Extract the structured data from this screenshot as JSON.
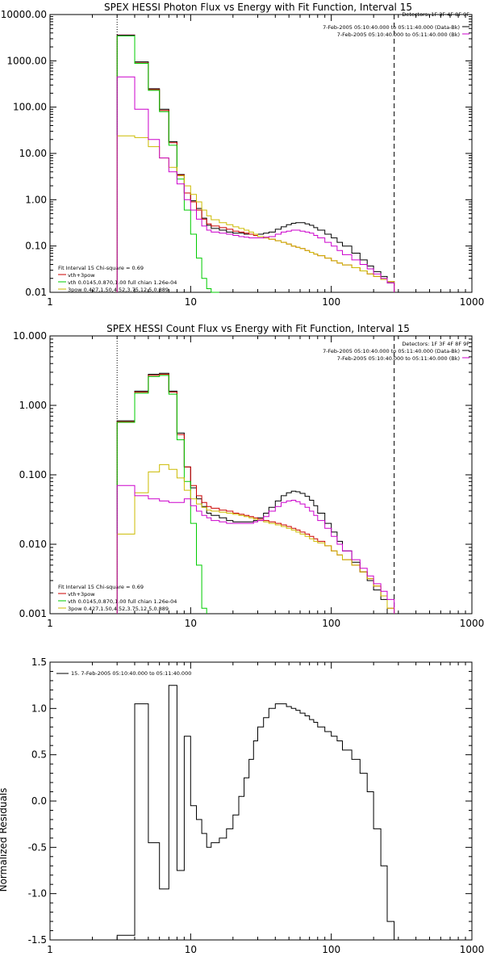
{
  "colors": {
    "data": "#000000",
    "vth_plus_3pow": "#cc0000",
    "vth": "#00cc00",
    "3pow": "#ccbb00",
    "bk": "#cc00cc",
    "dotted_line": "#000000"
  },
  "chart_data": [
    {
      "type": "line",
      "title": "SPEX HESSI Photon Flux vs Energy with Fit Function, Interval 15",
      "xlabel": "",
      "ylabel": "",
      "x_scale": "log",
      "y_scale": "log",
      "xlim": [
        1,
        1000
      ],
      "ylim": [
        0.01,
        10000
      ],
      "x_ticks": [
        1,
        10,
        100,
        1000
      ],
      "x_tick_labels": [
        "1",
        "10",
        "100",
        "1000"
      ],
      "y_ticks": [
        0.01,
        0.1,
        1,
        10,
        100,
        1000,
        10000
      ],
      "y_tick_labels": [
        "0.01",
        "0.10",
        "1.00",
        "10.00",
        "100.00",
        "1000.00",
        "10000.00"
      ],
      "detectors_label": "Detectors: 1F 3F 4F 8F 9F",
      "legend_top_right": [
        {
          "text": "7-Feb-2005 05:10:40.000 to 05:11:40.000 (Data-Bk)",
          "color": "#000000"
        },
        {
          "text": "7-Feb-2005 05:10:40.000 to 05:11:40.000 (Bk)",
          "color": "#cc00cc"
        }
      ],
      "legend_bottom_left": {
        "header": "Fit Interval 15    Chi-square = 0.69",
        "items": [
          {
            "text": "vth+3pow",
            "color": "#cc0000"
          },
          {
            "text": "vth 0.0145,0.870,1.00  full chian 1.26e-04",
            "color": "#00cc00"
          },
          {
            "text": "3pow 0.427,1.50,4.52,3.75,12.5,0.889",
            "color": "#ccbb00"
          }
        ]
      },
      "vlines": [
        {
          "x": 3,
          "style": "dotted"
        },
        {
          "x": 280,
          "style": "dashed"
        }
      ],
      "edges": [
        3,
        4,
        5,
        6,
        7,
        8,
        9,
        10,
        11,
        12,
        13,
        14,
        16,
        18,
        20,
        22,
        24,
        26,
        28,
        30,
        33,
        36,
        40,
        44,
        48,
        52,
        56,
        60,
        65,
        70,
        75,
        80,
        90,
        100,
        110,
        120,
        140,
        160,
        180,
        200,
        225,
        250,
        280
      ],
      "series": [
        {
          "name": "Data-Bk",
          "color": "#000000",
          "values": [
            3600,
            950,
            250,
            90,
            18,
            3.5,
            1.4,
            0.95,
            0.65,
            0.4,
            0.28,
            0.24,
            0.22,
            0.2,
            0.19,
            0.19,
            0.18,
            0.18,
            0.18,
            0.18,
            0.19,
            0.2,
            0.23,
            0.26,
            0.29,
            0.31,
            0.32,
            0.32,
            0.3,
            0.28,
            0.25,
            0.22,
            0.18,
            0.15,
            0.12,
            0.1,
            0.07,
            0.05,
            0.037,
            0.028,
            0.022,
            0.016
          ]
        },
        {
          "name": "vth+3pow",
          "color": "#cc0000",
          "values": [
            3500,
            900,
            240,
            85,
            17,
            3.4,
            1.4,
            0.9,
            0.6,
            0.38,
            0.3,
            0.27,
            0.25,
            0.23,
            0.21,
            0.2,
            0.19,
            0.18,
            0.17,
            0.16,
            0.15,
            0.14,
            0.13,
            0.12,
            0.11,
            0.1,
            0.094,
            0.088,
            0.08,
            0.073,
            0.067,
            0.062,
            0.055,
            0.048,
            0.043,
            0.039,
            0.034,
            0.029,
            0.025,
            0.022,
            0.019,
            0.017
          ]
        },
        {
          "name": "vth",
          "color": "#00cc00",
          "values": [
            3450,
            880,
            230,
            80,
            15,
            2.8,
            0.6,
            0.18,
            0.055,
            0.02,
            0.012,
            0.009
          ]
        },
        {
          "name": "3pow",
          "color": "#ccbb00",
          "values": [
            24,
            22,
            14,
            8,
            5,
            3.3,
            2.0,
            1.3,
            0.9,
            0.6,
            0.45,
            0.37,
            0.32,
            0.29,
            0.26,
            0.24,
            0.22,
            0.2,
            0.18,
            0.16,
            0.15,
            0.14,
            0.13,
            0.12,
            0.11,
            0.1,
            0.094,
            0.088,
            0.08,
            0.073,
            0.067,
            0.062,
            0.055,
            0.048,
            0.043,
            0.039,
            0.034,
            0.029,
            0.025,
            0.022,
            0.019,
            0.017
          ]
        },
        {
          "name": "Bk",
          "color": "#cc00cc",
          "values": [
            450,
            90,
            20,
            8,
            4,
            2.2,
            1.0,
            0.6,
            0.38,
            0.27,
            0.22,
            0.2,
            0.19,
            0.18,
            0.17,
            0.16,
            0.155,
            0.15,
            0.15,
            0.15,
            0.155,
            0.16,
            0.18,
            0.2,
            0.21,
            0.22,
            0.22,
            0.21,
            0.2,
            0.19,
            0.17,
            0.15,
            0.12,
            0.1,
            0.08,
            0.065,
            0.05,
            0.04,
            0.032,
            0.025,
            0.02,
            0.016
          ]
        }
      ]
    },
    {
      "type": "line",
      "title": "SPEX HESSI Count Flux vs Energy with Fit Function, Interval 15",
      "xlabel": "",
      "ylabel": "",
      "x_scale": "log",
      "y_scale": "log",
      "xlim": [
        1,
        1000
      ],
      "ylim": [
        0.001,
        10
      ],
      "x_ticks": [
        1,
        10,
        100,
        1000
      ],
      "x_tick_labels": [
        "1",
        "10",
        "100",
        "1000"
      ],
      "y_ticks": [
        0.001,
        0.01,
        0.1,
        1,
        10
      ],
      "y_tick_labels": [
        "0.001",
        "0.010",
        "0.100",
        "1.000",
        "10.000"
      ],
      "detectors_label": "Detectors: 1F 3F 4F 8F 9F",
      "legend_top_right": [
        {
          "text": "7-Feb-2005 05:10:40.000 to 05:11:40.000 (Data-Bk)",
          "color": "#000000"
        },
        {
          "text": "7-Feb-2005 05:10:40.000 to 05:11:40.000 (Bk)",
          "color": "#cc00cc"
        }
      ],
      "legend_bottom_left": {
        "header": "Fit Interval 15    Chi-square = 0.69",
        "items": [
          {
            "text": "vth+3pow",
            "color": "#cc0000"
          },
          {
            "text": "vth 0.0145,0.870,1.00  full chian 1.26e-04",
            "color": "#00cc00"
          },
          {
            "text": "3pow 0.427,1.50,4.52,3.75,12.5,0.889",
            "color": "#ccbb00"
          }
        ]
      },
      "vlines": [
        {
          "x": 3,
          "style": "dotted"
        },
        {
          "x": 280,
          "style": "dashed"
        }
      ],
      "edges": [
        3,
        4,
        5,
        6,
        7,
        8,
        9,
        10,
        11,
        12,
        13,
        14,
        16,
        18,
        20,
        22,
        24,
        26,
        28,
        30,
        33,
        36,
        40,
        44,
        48,
        52,
        56,
        60,
        65,
        70,
        75,
        80,
        90,
        100,
        110,
        120,
        140,
        160,
        180,
        200,
        225,
        250,
        280
      ],
      "series": [
        {
          "name": "Data-Bk",
          "color": "#000000",
          "values": [
            0.6,
            1.6,
            2.8,
            2.9,
            1.6,
            0.4,
            0.13,
            0.065,
            0.045,
            0.035,
            0.028,
            0.026,
            0.024,
            0.022,
            0.021,
            0.021,
            0.021,
            0.021,
            0.022,
            0.024,
            0.028,
            0.034,
            0.042,
            0.05,
            0.055,
            0.058,
            0.057,
            0.054,
            0.049,
            0.043,
            0.036,
            0.028,
            0.02,
            0.015,
            0.011,
            0.008,
            0.0055,
            0.004,
            0.003,
            0.0022,
            0.0016,
            0.001
          ]
        },
        {
          "name": "vth+3pow",
          "color": "#cc0000",
          "values": [
            0.58,
            1.55,
            2.7,
            2.8,
            1.55,
            0.38,
            0.13,
            0.07,
            0.05,
            0.04,
            0.035,
            0.033,
            0.031,
            0.03,
            0.028,
            0.027,
            0.026,
            0.025,
            0.024,
            0.023,
            0.022,
            0.021,
            0.02,
            0.019,
            0.018,
            0.017,
            0.016,
            0.015,
            0.014,
            0.013,
            0.012,
            0.011,
            0.0095,
            0.008,
            0.007,
            0.006,
            0.005,
            0.004,
            0.0032,
            0.0025,
            0.0018,
            0.0012
          ]
        },
        {
          "name": "vth",
          "color": "#00cc00",
          "values": [
            0.57,
            1.5,
            2.6,
            2.7,
            1.45,
            0.32,
            0.08,
            0.02,
            0.005,
            0.0012
          ]
        },
        {
          "name": "3pow",
          "color": "#ccbb00",
          "values": [
            0.014,
            0.055,
            0.11,
            0.14,
            0.12,
            0.09,
            0.06,
            0.045,
            0.038,
            0.034,
            0.031,
            0.03,
            0.029,
            0.028,
            0.027,
            0.026,
            0.025,
            0.024,
            0.023,
            0.022,
            0.021,
            0.02,
            0.019,
            0.018,
            0.017,
            0.016,
            0.015,
            0.014,
            0.013,
            0.012,
            0.011,
            0.0105,
            0.0095,
            0.008,
            0.007,
            0.006,
            0.005,
            0.004,
            0.0032,
            0.0025,
            0.0018,
            0.0012
          ]
        },
        {
          "name": "Bk",
          "color": "#cc00cc",
          "values": [
            0.07,
            0.05,
            0.045,
            0.042,
            0.04,
            0.04,
            0.045,
            0.036,
            0.03,
            0.026,
            0.024,
            0.022,
            0.021,
            0.02,
            0.02,
            0.02,
            0.02,
            0.02,
            0.021,
            0.022,
            0.025,
            0.03,
            0.035,
            0.04,
            0.042,
            0.043,
            0.041,
            0.038,
            0.034,
            0.03,
            0.026,
            0.022,
            0.017,
            0.013,
            0.01,
            0.008,
            0.006,
            0.0045,
            0.0035,
            0.0027,
            0.0021,
            0.0016
          ]
        }
      ]
    },
    {
      "type": "line",
      "title": "",
      "xlabel": "",
      "ylabel": "Normalized Residuals",
      "x_scale": "log",
      "y_scale": "linear",
      "xlim": [
        1,
        1000
      ],
      "ylim": [
        -1.5,
        1.5
      ],
      "x_ticks": [
        1,
        10,
        100,
        1000
      ],
      "x_tick_labels": [
        "1",
        "10",
        "100",
        "1000"
      ],
      "y_ticks": [
        -1.5,
        -1.0,
        -0.5,
        0.0,
        0.5,
        1.0,
        1.5
      ],
      "y_tick_labels": [
        "-1.5",
        "-1.0",
        "-0.5",
        "0.0",
        "0.5",
        "1.0",
        "1.5"
      ],
      "legend_top_left": {
        "text": "15.  7-Feb-2005 05:10:40.000 to 05:11:40.000",
        "color": "#000000"
      },
      "edges": [
        3,
        4,
        5,
        6,
        7,
        8,
        9,
        10,
        11,
        12,
        13,
        14,
        16,
        18,
        20,
        22,
        24,
        26,
        28,
        30,
        33,
        36,
        40,
        44,
        48,
        52,
        56,
        60,
        65,
        70,
        75,
        80,
        90,
        100,
        110,
        120,
        140,
        160,
        180,
        200,
        225,
        250,
        280
      ],
      "series": [
        {
          "name": "15",
          "color": "#000000",
          "values": [
            -1.45,
            1.05,
            -0.45,
            -0.95,
            1.25,
            -0.75,
            0.7,
            -0.05,
            -0.2,
            -0.35,
            -0.5,
            -0.45,
            -0.4,
            -0.3,
            -0.15,
            0.05,
            0.25,
            0.45,
            0.65,
            0.8,
            0.9,
            1.0,
            1.05,
            1.05,
            1.02,
            1.0,
            0.98,
            0.95,
            0.92,
            0.88,
            0.85,
            0.8,
            0.75,
            0.7,
            0.65,
            0.55,
            0.45,
            0.3,
            0.1,
            -0.3,
            -0.7,
            -1.3
          ]
        }
      ]
    }
  ]
}
